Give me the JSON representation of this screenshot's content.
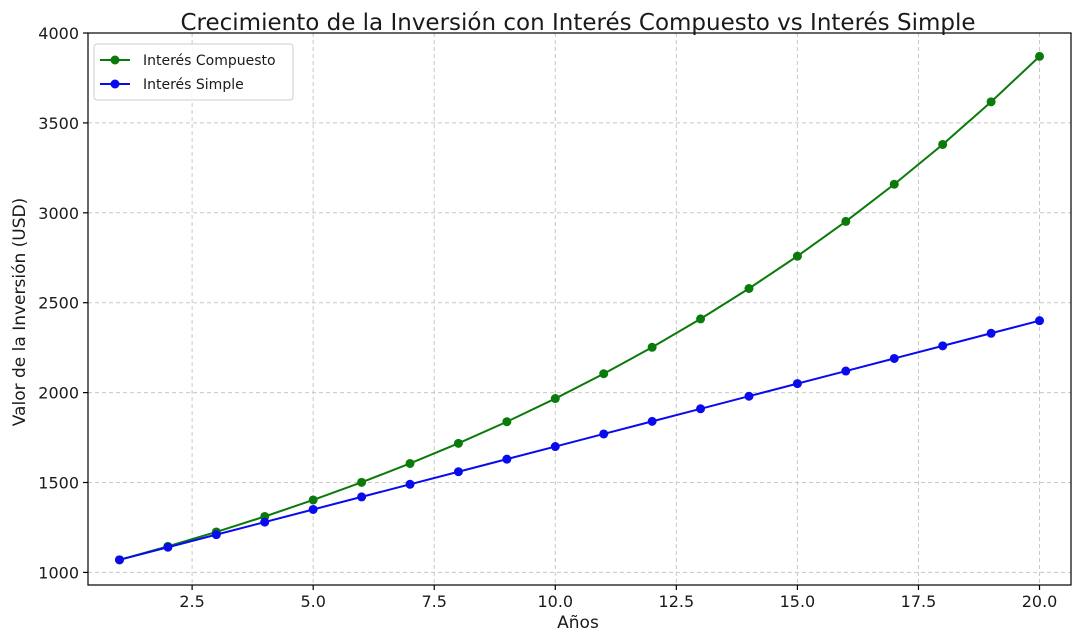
{
  "chart_data": {
    "type": "line",
    "title": "Crecimiento de la Inversión con Interés Compuesto vs Interés Simple",
    "xlabel": "Años",
    "ylabel": "Valor de la Inversión (USD)",
    "xlim": [
      0.35,
      20.65
    ],
    "ylim": [
      930,
      4000
    ],
    "xticks": [
      2.5,
      5.0,
      7.5,
      10.0,
      12.5,
      15.0,
      17.5,
      20.0
    ],
    "xtick_labels": [
      "2.5",
      "5.0",
      "7.5",
      "10.0",
      "12.5",
      "15.0",
      "17.5",
      "20.0"
    ],
    "yticks": [
      1000,
      1500,
      2000,
      2500,
      3000,
      3500,
      4000
    ],
    "ytick_labels": [
      "1000",
      "1500",
      "2000",
      "2500",
      "3000",
      "3500",
      "4000"
    ],
    "grid": true,
    "legend_position": "top-left",
    "x": [
      1,
      2,
      3,
      4,
      5,
      6,
      7,
      8,
      9,
      10,
      11,
      12,
      13,
      14,
      15,
      16,
      17,
      18,
      19,
      20
    ],
    "series": [
      {
        "name": "Interés Compuesto",
        "color": "#0a7a0a",
        "values": [
          1070,
          1145,
          1225,
          1311,
          1403,
          1501,
          1606,
          1718,
          1838,
          1967,
          2105,
          2252,
          2410,
          2579,
          2759,
          2952,
          3159,
          3380,
          3617,
          3870
        ]
      },
      {
        "name": "Interés Simple",
        "color": "#0a0aee",
        "values": [
          1070,
          1140,
          1210,
          1280,
          1350,
          1420,
          1490,
          1560,
          1630,
          1700,
          1770,
          1840,
          1910,
          1980,
          2050,
          2120,
          2190,
          2260,
          2330,
          2400
        ]
      }
    ]
  }
}
